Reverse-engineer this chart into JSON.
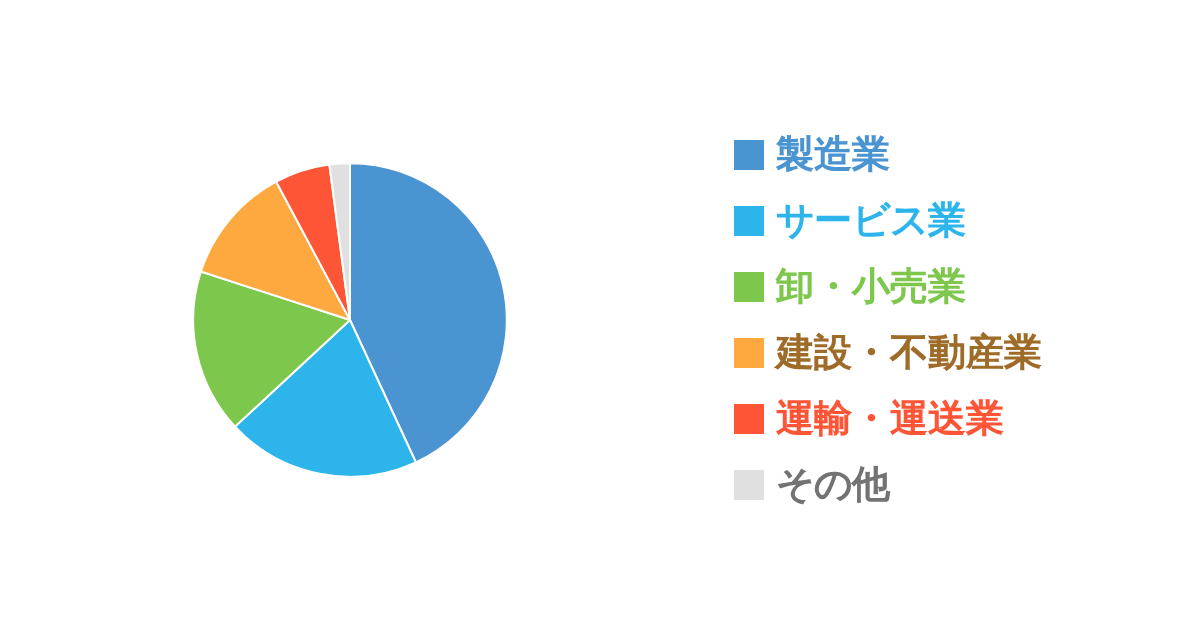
{
  "chart_data": {
    "type": "pie",
    "categories": [
      "製造業",
      "サービス業",
      "卸・小売業",
      "建設・不動産業",
      "運輸・運送業",
      "その他"
    ],
    "values": [
      43.1,
      20,
      16.9,
      12.2,
      5.7,
      2.1
    ],
    "colors": [
      "#4a94d2",
      "#2db5eb",
      "#7dc74d",
      "#fda93f",
      "#fe5537",
      "#e0e0e0"
    ],
    "legend": "right"
  }
}
